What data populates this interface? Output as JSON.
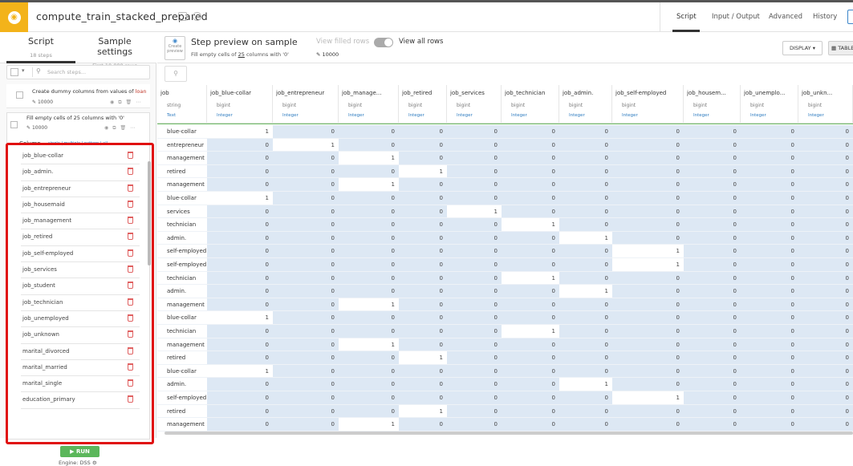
{
  "header": {
    "title": "compute_train_stacked_prepared",
    "nav": [
      "Script",
      "Input / Output",
      "Advanced",
      "History"
    ],
    "active_nav": "Script"
  },
  "left_panel": {
    "tabs": [
      {
        "label": "Script",
        "sub": "18 steps"
      },
      {
        "label": "Sample settings",
        "sub": "First 10,000 rows"
      }
    ],
    "search_placeholder": "Search steps...",
    "steps": [
      {
        "title_prefix": "Create dummy columns from values of ",
        "title_highlight": "loan",
        "count": "10000"
      },
      {
        "title": "Fill empty cells of 25 columns with '0'",
        "count": "10000"
      }
    ],
    "column_label": "Column",
    "column_modes": "single | multiple | pattern | all",
    "columns": [
      "job_blue-collar",
      "job_admin.",
      "job_entrepreneur",
      "job_housemaid",
      "job_management",
      "job_retired",
      "job_self-employed",
      "job_services",
      "job_student",
      "job_technician",
      "job_unemployed",
      "job_unknown",
      "marital_divorced",
      "marital_married",
      "marital_single",
      "education_primary"
    ],
    "run_label": "RUN",
    "engine_label": "Engine: DSS"
  },
  "preview": {
    "create_preview": "Create preview",
    "title": "Step preview on sample",
    "subtitle_pre": "Fill empty cells of ",
    "subtitle_num": "25",
    "subtitle_post": " columns with '0'",
    "view_filled": "View filled rows",
    "view_all": "View all rows",
    "count": "10000",
    "display_btn": "DISPLAY ▾",
    "table_btn": "TABLE"
  },
  "table": {
    "columns": [
      {
        "name": "job",
        "type": "string",
        "meaning": "Text"
      },
      {
        "name": "job_blue-collar",
        "type": "bigint",
        "meaning": "Integer"
      },
      {
        "name": "job_entrepreneur",
        "type": "bigint",
        "meaning": "Integer"
      },
      {
        "name": "job_manage...",
        "type": "bigint",
        "meaning": "Integer"
      },
      {
        "name": "job_retired",
        "type": "bigint",
        "meaning": "Integer"
      },
      {
        "name": "job_services",
        "type": "bigint",
        "meaning": "Integer"
      },
      {
        "name": "job_technician",
        "type": "bigint",
        "meaning": "Integer"
      },
      {
        "name": "job_admin.",
        "type": "bigint",
        "meaning": "Integer"
      },
      {
        "name": "job_self-employed",
        "type": "bigint",
        "meaning": "Integer"
      },
      {
        "name": "job_housem...",
        "type": "bigint",
        "meaning": "Integer"
      },
      {
        "name": "job_unemplo...",
        "type": "bigint",
        "meaning": "Integer"
      },
      {
        "name": "job_unkn...",
        "type": "bigint",
        "meaning": "Integer"
      }
    ],
    "rows": [
      [
        "blue-collar",
        "1",
        "0",
        "0",
        "0",
        "0",
        "0",
        "0",
        "0",
        "0",
        "0",
        "0"
      ],
      [
        "entrepreneur",
        "0",
        "1",
        "0",
        "0",
        "0",
        "0",
        "0",
        "0",
        "0",
        "0",
        "0"
      ],
      [
        "management",
        "0",
        "0",
        "1",
        "0",
        "0",
        "0",
        "0",
        "0",
        "0",
        "0",
        "0"
      ],
      [
        "retired",
        "0",
        "0",
        "0",
        "1",
        "0",
        "0",
        "0",
        "0",
        "0",
        "0",
        "0"
      ],
      [
        "management",
        "0",
        "0",
        "1",
        "0",
        "0",
        "0",
        "0",
        "0",
        "0",
        "0",
        "0"
      ],
      [
        "blue-collar",
        "1",
        "0",
        "0",
        "0",
        "0",
        "0",
        "0",
        "0",
        "0",
        "0",
        "0"
      ],
      [
        "services",
        "0",
        "0",
        "0",
        "0",
        "1",
        "0",
        "0",
        "0",
        "0",
        "0",
        "0"
      ],
      [
        "technician",
        "0",
        "0",
        "0",
        "0",
        "0",
        "1",
        "0",
        "0",
        "0",
        "0",
        "0"
      ],
      [
        "admin.",
        "0",
        "0",
        "0",
        "0",
        "0",
        "0",
        "1",
        "0",
        "0",
        "0",
        "0"
      ],
      [
        "self-employed",
        "0",
        "0",
        "0",
        "0",
        "0",
        "0",
        "0",
        "1",
        "0",
        "0",
        "0"
      ],
      [
        "self-employed",
        "0",
        "0",
        "0",
        "0",
        "0",
        "0",
        "0",
        "1",
        "0",
        "0",
        "0"
      ],
      [
        "technician",
        "0",
        "0",
        "0",
        "0",
        "0",
        "1",
        "0",
        "0",
        "0",
        "0",
        "0"
      ],
      [
        "admin.",
        "0",
        "0",
        "0",
        "0",
        "0",
        "0",
        "1",
        "0",
        "0",
        "0",
        "0"
      ],
      [
        "management",
        "0",
        "0",
        "1",
        "0",
        "0",
        "0",
        "0",
        "0",
        "0",
        "0",
        "0"
      ],
      [
        "blue-collar",
        "1",
        "0",
        "0",
        "0",
        "0",
        "0",
        "0",
        "0",
        "0",
        "0",
        "0"
      ],
      [
        "technician",
        "0",
        "0",
        "0",
        "0",
        "0",
        "1",
        "0",
        "0",
        "0",
        "0",
        "0"
      ],
      [
        "management",
        "0",
        "0",
        "1",
        "0",
        "0",
        "0",
        "0",
        "0",
        "0",
        "0",
        "0"
      ],
      [
        "retired",
        "0",
        "0",
        "0",
        "1",
        "0",
        "0",
        "0",
        "0",
        "0",
        "0",
        "0"
      ],
      [
        "blue-collar",
        "1",
        "0",
        "0",
        "0",
        "0",
        "0",
        "0",
        "0",
        "0",
        "0",
        "0"
      ],
      [
        "admin.",
        "0",
        "0",
        "0",
        "0",
        "0",
        "0",
        "1",
        "0",
        "0",
        "0",
        "0"
      ],
      [
        "self-employed",
        "0",
        "0",
        "0",
        "0",
        "0",
        "0",
        "0",
        "1",
        "0",
        "0",
        "0"
      ],
      [
        "retired",
        "0",
        "0",
        "0",
        "1",
        "0",
        "0",
        "0",
        "0",
        "0",
        "0",
        "0"
      ],
      [
        "management",
        "0",
        "0",
        "1",
        "0",
        "0",
        "0",
        "0",
        "0",
        "0",
        "0",
        "0"
      ]
    ]
  },
  "colors": {
    "accent": "#f3b31a",
    "link": "#2d7bc0",
    "highlight_box": "#e01010",
    "run": "#5bb75b",
    "valid_bar": "#6dbd63"
  }
}
